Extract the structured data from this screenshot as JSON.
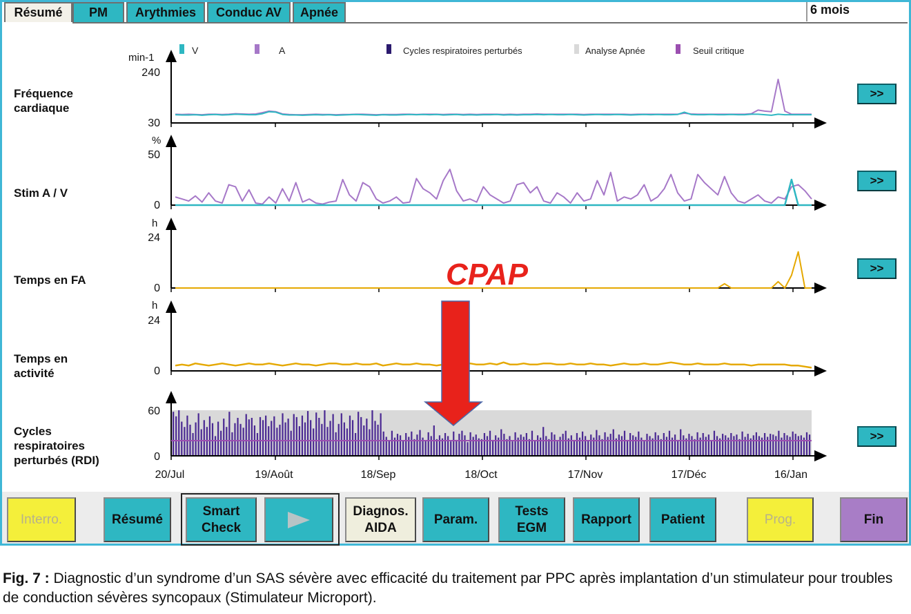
{
  "tabs": [
    {
      "label": "Résumé",
      "active": true
    },
    {
      "label": "PM",
      "active": false
    },
    {
      "label": "Arythmies",
      "active": false
    },
    {
      "label": "Conduc AV",
      "active": false
    },
    {
      "label": "Apnée",
      "active": false
    }
  ],
  "period": "6 mois",
  "legend": [
    {
      "label": "V",
      "color": "#2eb7c2"
    },
    {
      "label": "A",
      "color": "#a678c8"
    },
    {
      "label": "Cycles respiratoires perturbés",
      "color": "#2b1a6e"
    },
    {
      "label": "Analyse Apnée",
      "color": "#d9d9d9"
    },
    {
      "label": "Seuil critique",
      "color": "#9b4fb0"
    }
  ],
  "rows": [
    {
      "label": "Fréquence\ncardiaque",
      "unit": "min-1",
      "ymax": "240",
      "ymin": "30"
    },
    {
      "label": "Stim A / V",
      "unit": "%",
      "ymax": "50",
      "ymin": "0"
    },
    {
      "label": "Temps en FA",
      "unit": "h",
      "ymax": "24",
      "ymin": "0"
    },
    {
      "label": "Temps en\nactivité",
      "unit": "h",
      "ymax": "24",
      "ymin": "0"
    },
    {
      "label": "Cycles\nrespiratoires\nperturbés (RDI)",
      "unit": "",
      "ymax": "60",
      "ymin": "0"
    }
  ],
  "more_button": ">>",
  "x_ticks": [
    "20/Jul",
    "19/Août",
    "18/Sep",
    "18/Oct",
    "17/Nov",
    "17/Déc",
    "16/Jan"
  ],
  "annotation": "CPAP",
  "bottom_buttons": {
    "interro": "Interro.",
    "resume": "Résumé",
    "smart_check": "Smart\nCheck",
    "diagnos": "Diagnos.\nAIDA",
    "param": "Param.",
    "tests": "Tests\nEGM",
    "rapport": "Rapport",
    "patient": "Patient",
    "prog": "Prog.",
    "fin": "Fin"
  },
  "caption": {
    "label": "Fig. 7 :",
    "text": " Diagnostic d’un syndrome d’un SAS sévère avec efficacité du traitement par PPC après implantation d’un stimulateur pour troubles de conduction sévères syncopaux (Stimulateur Microport)."
  },
  "colors": {
    "teal": "#2eb7c2",
    "purple_line": "#a678c8",
    "orange_line": "#e5a800",
    "rdi_bar": "#4b2a93",
    "apnea_zone": "#d9d9d9",
    "threshold": "#9b4fb0",
    "arrow": "#e8221b",
    "cpap_text": "#e8221b"
  },
  "chart_data": [
    {
      "type": "line",
      "name": "Fréquence cardiaque",
      "ylabel": "min-1",
      "ylim": [
        30,
        240
      ],
      "x_ticks": [
        "20/Jul",
        "19/Août",
        "18/Sep",
        "18/Oct",
        "17/Nov",
        "17/Déc",
        "16/Jan"
      ],
      "series": [
        {
          "name": "V",
          "values": [
            62,
            61,
            61,
            62,
            60,
            62,
            63,
            61,
            62,
            64,
            63,
            62,
            62,
            66,
            74,
            72,
            63,
            61,
            61,
            60,
            61,
            62,
            61,
            62,
            60,
            61,
            62,
            63,
            62,
            61,
            60,
            62,
            61,
            61,
            62,
            63,
            62,
            63,
            62,
            63,
            61,
            62,
            63,
            61,
            62,
            61,
            62,
            62,
            63,
            61,
            62,
            61,
            62,
            62,
            63,
            62,
            63,
            62,
            62,
            63,
            62,
            61,
            62,
            63,
            62,
            62,
            63,
            62,
            61,
            62,
            63,
            62,
            63,
            62,
            62,
            63,
            72,
            63,
            62,
            62,
            63,
            62,
            62,
            63,
            62,
            62,
            64,
            64,
            62,
            60,
            64,
            62,
            62,
            62,
            62,
            62
          ]
        },
        {
          "name": "A",
          "values": [
            64,
            63,
            64,
            63,
            62,
            64,
            64,
            63,
            64,
            66,
            65,
            64,
            65,
            70,
            76,
            74,
            65,
            63,
            62,
            62,
            63,
            64,
            63,
            63,
            62,
            63,
            63,
            64,
            64,
            63,
            62,
            63,
            63,
            63,
            64,
            64,
            63,
            64,
            64,
            64,
            63,
            64,
            64,
            63,
            64,
            63,
            64,
            64,
            64,
            63,
            64,
            63,
            64,
            64,
            65,
            64,
            64,
            64,
            64,
            64,
            64,
            63,
            64,
            64,
            64,
            64,
            64,
            64,
            63,
            64,
            64,
            64,
            64,
            64,
            64,
            64,
            68,
            65,
            64,
            64,
            64,
            64,
            64,
            64,
            64,
            64,
            66,
            80,
            76,
            74,
            200,
            76,
            64,
            64,
            64,
            64
          ]
        }
      ]
    },
    {
      "type": "line",
      "name": "Stim A / V",
      "ylabel": "%",
      "ylim": [
        0,
        50
      ],
      "series": [
        {
          "name": "A",
          "values": [
            8,
            6,
            4,
            9,
            3,
            12,
            4,
            2,
            20,
            18,
            4,
            15,
            2,
            1,
            8,
            2,
            16,
            4,
            22,
            3,
            6,
            2,
            1,
            3,
            4,
            25,
            10,
            4,
            22,
            18,
            6,
            2,
            4,
            8,
            2,
            3,
            26,
            16,
            12,
            6,
            24,
            35,
            14,
            4,
            6,
            3,
            18,
            10,
            6,
            2,
            4,
            20,
            22,
            12,
            18,
            4,
            2,
            12,
            8,
            2,
            12,
            4,
            6,
            24,
            10,
            32,
            4,
            8,
            6,
            10,
            20,
            4,
            8,
            16,
            30,
            12,
            4,
            6,
            30,
            22,
            16,
            10,
            28,
            12,
            4,
            2,
            6,
            10,
            4,
            2,
            8,
            6,
            18,
            20,
            14,
            6
          ]
        },
        {
          "name": "V",
          "values": [
            0,
            0,
            0,
            0,
            0,
            0,
            0,
            0,
            0,
            0,
            0,
            0,
            0,
            0,
            0,
            0,
            0,
            0,
            0,
            0,
            0,
            0,
            0,
            0,
            0,
            0,
            0,
            0,
            0,
            0,
            0,
            0,
            0,
            0,
            0,
            0,
            0,
            0,
            0,
            0,
            0,
            0,
            0,
            0,
            0,
            0,
            0,
            0,
            0,
            0,
            0,
            0,
            0,
            0,
            0,
            0,
            0,
            0,
            0,
            0,
            0,
            0,
            0,
            0,
            0,
            0,
            0,
            0,
            0,
            0,
            0,
            0,
            0,
            0,
            0,
            0,
            0,
            0,
            0,
            0,
            0,
            0,
            0,
            0,
            0,
            0,
            0,
            0,
            0,
            0,
            0,
            0,
            25,
            0,
            0,
            0
          ]
        }
      ]
    },
    {
      "type": "line",
      "name": "Temps en FA",
      "ylabel": "h",
      "ylim": [
        0,
        24
      ],
      "series": [
        {
          "name": "FA",
          "values": [
            0,
            0,
            0,
            0,
            0,
            0,
            0,
            0,
            0,
            0,
            0,
            0,
            0,
            0,
            0,
            0,
            0,
            0,
            0,
            0,
            0,
            0,
            0,
            0,
            0,
            0,
            0,
            0,
            0,
            0,
            0,
            0,
            0,
            0,
            0,
            0,
            0,
            0,
            0,
            0,
            0,
            0,
            0,
            0,
            0,
            0,
            0,
            0,
            0,
            0,
            0,
            0,
            0,
            0,
            0,
            0,
            0,
            0,
            0,
            0,
            0,
            0,
            0,
            0,
            0,
            0,
            0,
            0,
            0,
            0,
            0,
            0,
            0,
            0,
            0,
            0,
            0,
            0,
            0,
            0,
            0,
            0,
            2,
            0,
            0,
            0,
            0,
            0,
            0,
            0,
            3,
            0,
            6,
            17,
            0,
            0
          ]
        }
      ]
    },
    {
      "type": "line",
      "name": "Temps en activité",
      "ylabel": "h",
      "ylim": [
        0,
        24
      ],
      "series": [
        {
          "name": "activité",
          "values": [
            2.5,
            3,
            2.5,
            3.5,
            3,
            2.5,
            3,
            3.5,
            3,
            2.5,
            3,
            3.5,
            3,
            3,
            3.5,
            3,
            2.5,
            3,
            3.5,
            3,
            3,
            2.5,
            3,
            3.5,
            3.5,
            3,
            3,
            3.5,
            3,
            3,
            3.5,
            2.5,
            3,
            3.5,
            3,
            3,
            3.5,
            3,
            3,
            2.5,
            3,
            3.5,
            3,
            3,
            3.5,
            3,
            3,
            3.5,
            3,
            4,
            3,
            3,
            3.5,
            3,
            3,
            3.5,
            3.5,
            3,
            3,
            3.5,
            3,
            3,
            3.5,
            3,
            3,
            2.5,
            3,
            3.5,
            3,
            3,
            3.5,
            3,
            3,
            3.5,
            4,
            3.5,
            3,
            3,
            3.5,
            3,
            3,
            3,
            3.5,
            3,
            3,
            3,
            2.5,
            3,
            3,
            3,
            3,
            3,
            2.5,
            2.5,
            2,
            1.5
          ]
        }
      ]
    },
    {
      "type": "bar",
      "name": "Cycles respiratoires perturbés (RDI)",
      "ylim": [
        0,
        60
      ],
      "annotation": "CPAP",
      "threshold": 20,
      "apnea_zone": [
        0,
        60
      ],
      "values": [
        58,
        52,
        60,
        45,
        38,
        53,
        41,
        30,
        44,
        56,
        35,
        47,
        38,
        52,
        43,
        26,
        45,
        33,
        49,
        38,
        58,
        31,
        43,
        50,
        42,
        37,
        55,
        48,
        50,
        40,
        30,
        51,
        47,
        53,
        39,
        46,
        52,
        37,
        41,
        56,
        44,
        49,
        33,
        55,
        51,
        39,
        53,
        44,
        59,
        47,
        36,
        57,
        50,
        42,
        60,
        38,
        46,
        55,
        31,
        42,
        56,
        44,
        36,
        53,
        47,
        30,
        58,
        51,
        40,
        49,
        35,
        60,
        46,
        41,
        56,
        32,
        25,
        20,
        33,
        24,
        29,
        27,
        20,
        30,
        25,
        32,
        22,
        28,
        34,
        24,
        20,
        31,
        26,
        40,
        22,
        27,
        23,
        30,
        26,
        19,
        32,
        21,
        29,
        33,
        27,
        18,
        31,
        25,
        28,
        23,
        22,
        30,
        26,
        33,
        21,
        27,
        24,
        35,
        29,
        22,
        26,
        19,
        31,
        24,
        28,
        25,
        30,
        22,
        33,
        20,
        27,
        24,
        38,
        26,
        22,
        31,
        28,
        19,
        25,
        29,
        33,
        23,
        27,
        21,
        30,
        24,
        32,
        26,
        20,
        28,
        24,
        34,
        27,
        22,
        31,
        25,
        29,
        35,
        23,
        28,
        26,
        33,
        21,
        30,
        27,
        25,
        32,
        24,
        20,
        29,
        26,
        23,
        31,
        27,
        22,
        30,
        25,
        33,
        24,
        28,
        21,
        35,
        27,
        23,
        29,
        26,
        22,
        31,
        24,
        30,
        25,
        28,
        20,
        33,
        26,
        23,
        29,
        27,
        24,
        30,
        26,
        28,
        22,
        32,
        25,
        29,
        23,
        27,
        31,
        26,
        24,
        30,
        25,
        29,
        28,
        26,
        33,
        24,
        30,
        27,
        25,
        32,
        29,
        26,
        27,
        24,
        31,
        28
      ]
    }
  ]
}
